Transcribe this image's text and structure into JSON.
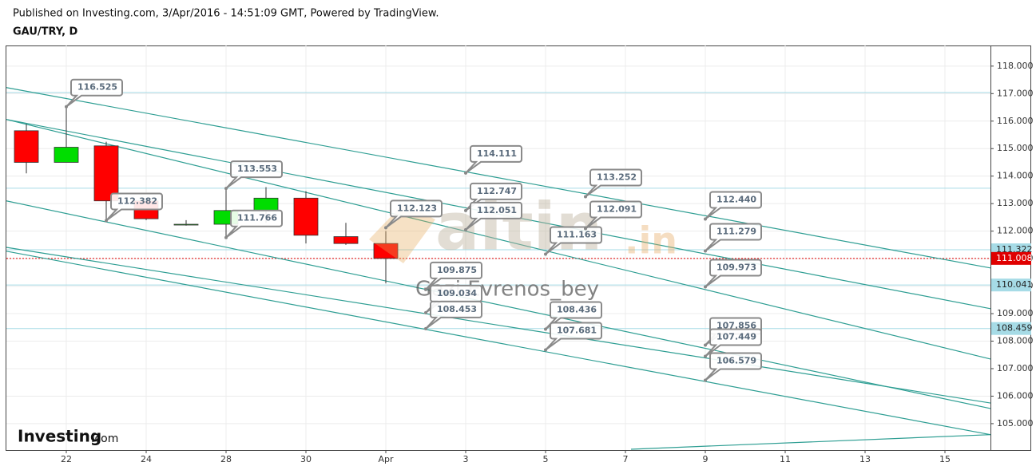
{
  "header": {
    "published": "Published on Investing.com, 3/Apr/2016 - 14:51:09 GMT, Powered by TradingView.",
    "symbol": "GAU/TRY, D"
  },
  "logo": {
    "name": "Investing",
    "suffix": ".com"
  },
  "watermark": {
    "brand": "altin",
    "brand_suffix": ".in",
    "author": "Gazi Evrenos_bey"
  },
  "chart_data": {
    "type": "candlestick",
    "categories": [
      null,
      "22",
      null,
      "24",
      null,
      "28",
      null,
      "30",
      null,
      "Apr",
      null,
      "3",
      null,
      "5",
      null,
      "7",
      null,
      "9",
      null,
      "11",
      null,
      "13",
      null,
      "15",
      null
    ],
    "open": [
      115.65,
      114.5,
      115.1,
      113.1,
      112.25,
      112.25,
      112.75,
      113.2,
      111.8,
      111.55,
      null,
      null,
      null,
      null,
      null,
      null,
      null,
      null,
      null,
      null,
      null,
      null,
      null,
      null,
      null
    ],
    "high": [
      115.9,
      116.525,
      115.25,
      113.15,
      112.4,
      113.553,
      113.6,
      113.45,
      112.3,
      112.0,
      null,
      null,
      null,
      null,
      null,
      null,
      null,
      null,
      null,
      null,
      null,
      null,
      null,
      null,
      null
    ],
    "low": [
      114.1,
      114.5,
      112.382,
      112.4,
      112.2,
      111.766,
      112.3,
      111.55,
      111.5,
      110.1,
      null,
      null,
      null,
      null,
      null,
      null,
      null,
      null,
      null,
      null,
      null,
      null,
      null,
      null,
      null
    ],
    "close": [
      114.5,
      115.05,
      113.1,
      112.45,
      112.25,
      112.75,
      113.2,
      111.85,
      111.55,
      111.008,
      null,
      null,
      null,
      null,
      null,
      null,
      null,
      null,
      null,
      null,
      null,
      null,
      null,
      null,
      null
    ],
    "up_color": "#00dd00",
    "down_color": "#ff0000",
    "xlim": [
      -0.5,
      24.14
    ],
    "ylim": [
      104.04,
      118.75
    ],
    "yticks": [
      {
        "value": 105,
        "label": "105.000"
      },
      {
        "value": 106,
        "label": "106.000"
      },
      {
        "value": 107,
        "label": "107.000"
      },
      {
        "value": 108,
        "label": "108.000"
      },
      {
        "value": 109,
        "label": "109.000"
      },
      {
        "value": 110,
        "label": "110.000"
      },
      {
        "value": 111,
        "label": "111.000"
      },
      {
        "value": 112,
        "label": "112.000"
      },
      {
        "value": 113,
        "label": "113.000"
      },
      {
        "value": 114,
        "label": "114.000"
      },
      {
        "value": 115,
        "label": "115.000"
      },
      {
        "value": 116,
        "label": "116.000"
      },
      {
        "value": 117,
        "label": "117.000"
      },
      {
        "value": 118,
        "label": "118.000"
      }
    ],
    "grid": true,
    "levels": [
      117.04,
      113.56,
      111.322,
      110.041,
      108.459
    ],
    "level_color": "#a6dbe6",
    "last_price": 111.008,
    "last_color": "#e00000",
    "price_labels": [
      {
        "value": 111.322,
        "color": "#a6dbe6"
      },
      {
        "value": 111.008,
        "color": "#e00000"
      },
      {
        "value": 110.041,
        "color": "#a6dbe6"
      },
      {
        "value": 108.459,
        "color": "#a6dbe6"
      }
    ],
    "trend_color": "#2e9e93",
    "trendlines": [
      {
        "x": [
          -0.5,
          24.14
        ],
        "y": [
          117.22,
          110.66
        ]
      },
      {
        "x": [
          -0.5,
          24.14
        ],
        "y": [
          116.06,
          109.18
        ]
      },
      {
        "x": [
          -0.5,
          24.14
        ],
        "y": [
          116.06,
          107.35
        ]
      },
      {
        "x": [
          -0.5,
          24.14
        ],
        "y": [
          113.1,
          105.55
        ]
      },
      {
        "x": [
          -0.5,
          24.14
        ],
        "y": [
          111.41,
          105.75
        ]
      },
      {
        "x": [
          -0.5,
          24.14
        ],
        "y": [
          111.27,
          104.6
        ]
      },
      {
        "x": [
          15.14,
          24.14
        ],
        "y": [
          104.07,
          104.6
        ]
      }
    ],
    "annotations": [
      {
        "x": 1,
        "value": 116.525,
        "label": "116.525"
      },
      {
        "x": 2,
        "value": 112.382,
        "label": "112.382"
      },
      {
        "x": 5,
        "value": 113.553,
        "label": "113.553"
      },
      {
        "x": 5,
        "value": 111.766,
        "label": "111.766"
      },
      {
        "x": 9,
        "value": 112.123,
        "label": "112.123"
      },
      {
        "x": 10,
        "value": 109.875,
        "label": "109.875"
      },
      {
        "x": 10,
        "value": 109.034,
        "label": "109.034"
      },
      {
        "x": 10,
        "value": 108.453,
        "label": "108.453"
      },
      {
        "x": 11,
        "value": 114.111,
        "label": "114.111"
      },
      {
        "x": 11,
        "value": 112.747,
        "label": "112.747"
      },
      {
        "x": 11,
        "value": 112.051,
        "label": "112.051"
      },
      {
        "x": 13,
        "value": 111.163,
        "label": "111.163"
      },
      {
        "x": 13,
        "value": 108.436,
        "label": "108.436"
      },
      {
        "x": 13,
        "value": 107.681,
        "label": "107.681"
      },
      {
        "x": 14,
        "value": 113.252,
        "label": "113.252"
      },
      {
        "x": 14,
        "value": 112.091,
        "label": "112.091"
      },
      {
        "x": 17,
        "value": 112.44,
        "label": "112.440"
      },
      {
        "x": 17,
        "value": 111.279,
        "label": "111.279"
      },
      {
        "x": 17,
        "value": 109.973,
        "label": "109.973"
      },
      {
        "x": 17,
        "value": 107.856,
        "label": "107.856"
      },
      {
        "x": 17,
        "value": 107.449,
        "label": "107.449"
      },
      {
        "x": 17,
        "value": 106.579,
        "label": "106.579"
      }
    ]
  }
}
